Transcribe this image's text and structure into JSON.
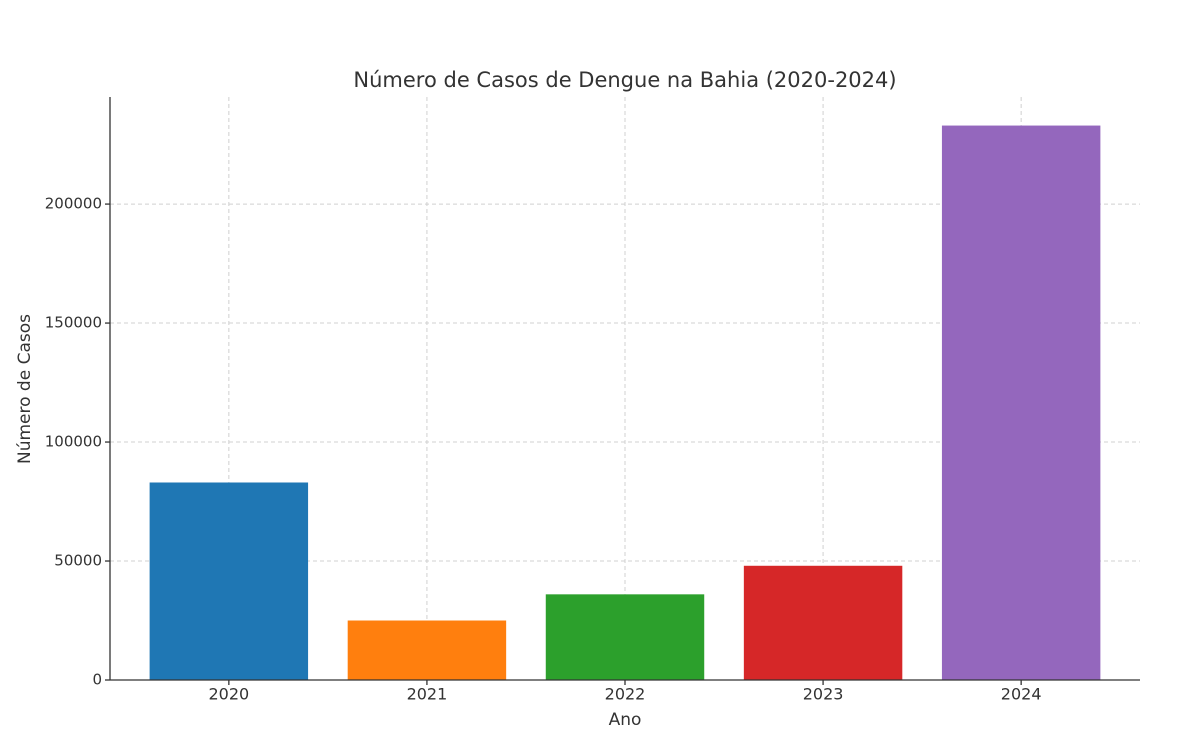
{
  "chart_data": {
    "type": "bar",
    "title": "Número de Casos de Dengue na Bahia (2020-2024)",
    "x_label": "Ano",
    "y_label": "Número de Casos",
    "categories": [
      "2020",
      "2021",
      "2022",
      "2023",
      "2024"
    ],
    "values": [
      83000,
      25000,
      36000,
      48000,
      233000
    ],
    "colors": [
      "#1f77b4",
      "#ff7f0e",
      "#2ca02c",
      "#d62728",
      "#9467bd"
    ],
    "ylim": [
      0,
      245000
    ],
    "yticks": [
      0,
      50000,
      100000,
      150000,
      200000
    ],
    "grid": true
  }
}
